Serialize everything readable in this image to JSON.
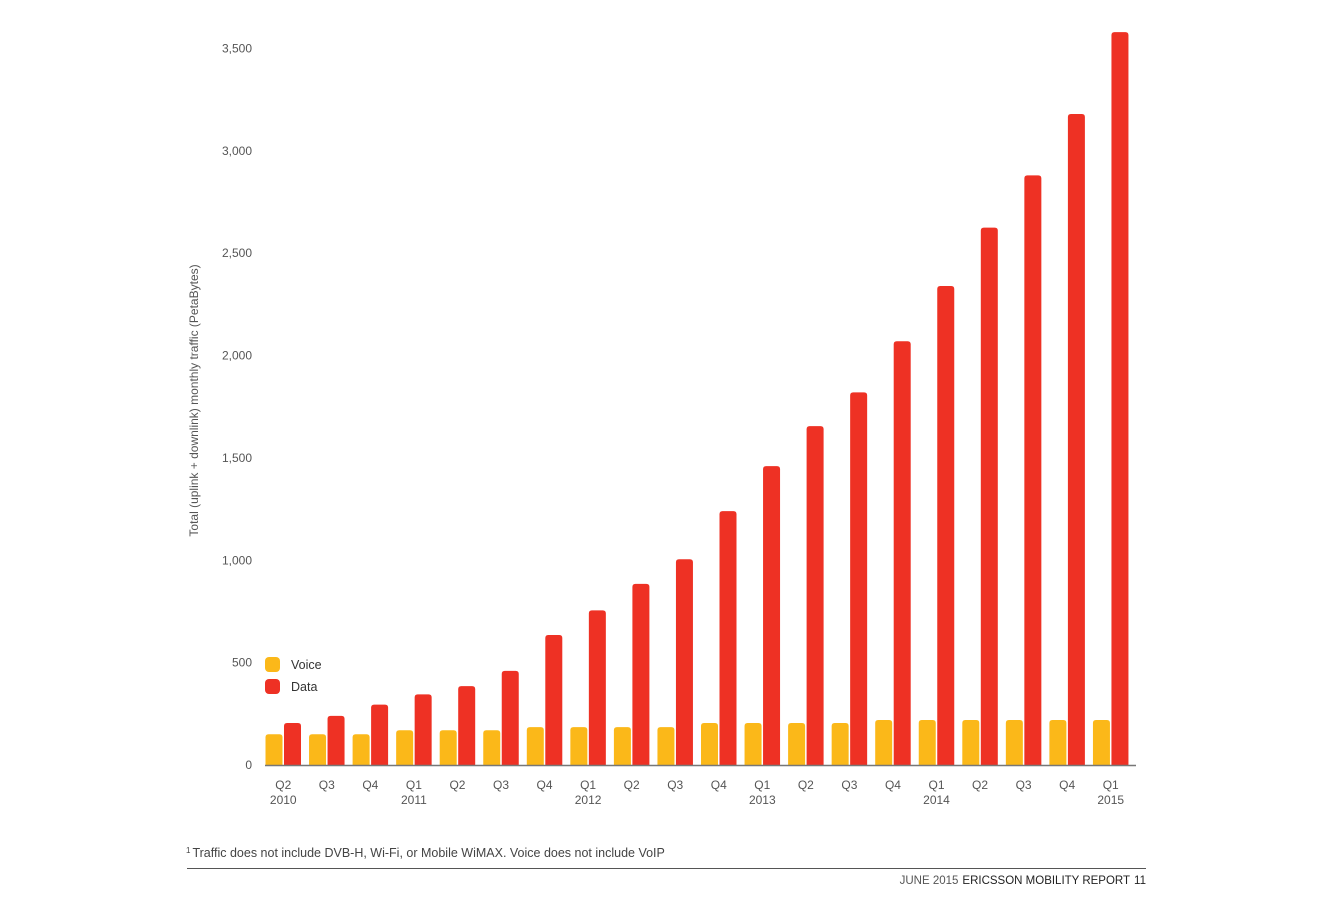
{
  "chart_data": {
    "type": "bar",
    "categories": [
      "Q2 2010",
      "Q3",
      "Q4",
      "Q1 2011",
      "Q2",
      "Q3",
      "Q4",
      "Q1 2012",
      "Q2",
      "Q3",
      "Q4",
      "Q1 2013",
      "Q2",
      "Q3",
      "Q4",
      "Q1 2014",
      "Q2",
      "Q3",
      "Q4",
      "Q1 2015"
    ],
    "category_labels": [
      [
        "Q2",
        "2010"
      ],
      [
        "Q3",
        ""
      ],
      [
        "Q4",
        ""
      ],
      [
        "Q1",
        "2011"
      ],
      [
        "Q2",
        ""
      ],
      [
        "Q3",
        ""
      ],
      [
        "Q4",
        ""
      ],
      [
        "Q1",
        "2012"
      ],
      [
        "Q2",
        ""
      ],
      [
        "Q3",
        ""
      ],
      [
        "Q4",
        ""
      ],
      [
        "Q1",
        "2013"
      ],
      [
        "Q2",
        ""
      ],
      [
        "Q3",
        ""
      ],
      [
        "Q4",
        ""
      ],
      [
        "Q1",
        "2014"
      ],
      [
        "Q2",
        ""
      ],
      [
        "Q3",
        ""
      ],
      [
        "Q4",
        ""
      ],
      [
        "Q1",
        "2015"
      ]
    ],
    "series": [
      {
        "name": "Voice",
        "color": "#fbb819",
        "values": [
          150,
          150,
          150,
          170,
          170,
          170,
          185,
          185,
          185,
          185,
          205,
          205,
          205,
          205,
          220,
          220,
          220,
          220,
          220,
          220
        ]
      },
      {
        "name": "Data",
        "color": "#ee3124",
        "values": [
          205,
          240,
          295,
          345,
          385,
          460,
          635,
          755,
          885,
          1005,
          1240,
          1460,
          1655,
          1820,
          2070,
          2340,
          2625,
          2880,
          3180,
          3580
        ]
      }
    ],
    "yticks": [
      0,
      500,
      1000,
      1500,
      2000,
      2500,
      3000,
      3500
    ],
    "ytick_labels": [
      "0",
      "500",
      "1,000",
      "1,500",
      "2,000",
      "2,500",
      "3,000",
      "3,500"
    ],
    "ylim": [
      0,
      3600
    ],
    "ylabel": "Total (uplink + downlink) monthly traffic (PetaBytes)",
    "xlabel": "",
    "title": "",
    "grid": false,
    "legend_position": "bottom-left"
  },
  "footnote": {
    "marker": "1",
    "text": "Traffic does not include DVB-H, Wi-Fi, or Mobile WiMAX. Voice does not include VoIP"
  },
  "report_footer": {
    "date": "JUNE 2015",
    "name": "ERICSSON MOBILITY REPORT",
    "page": "11"
  }
}
